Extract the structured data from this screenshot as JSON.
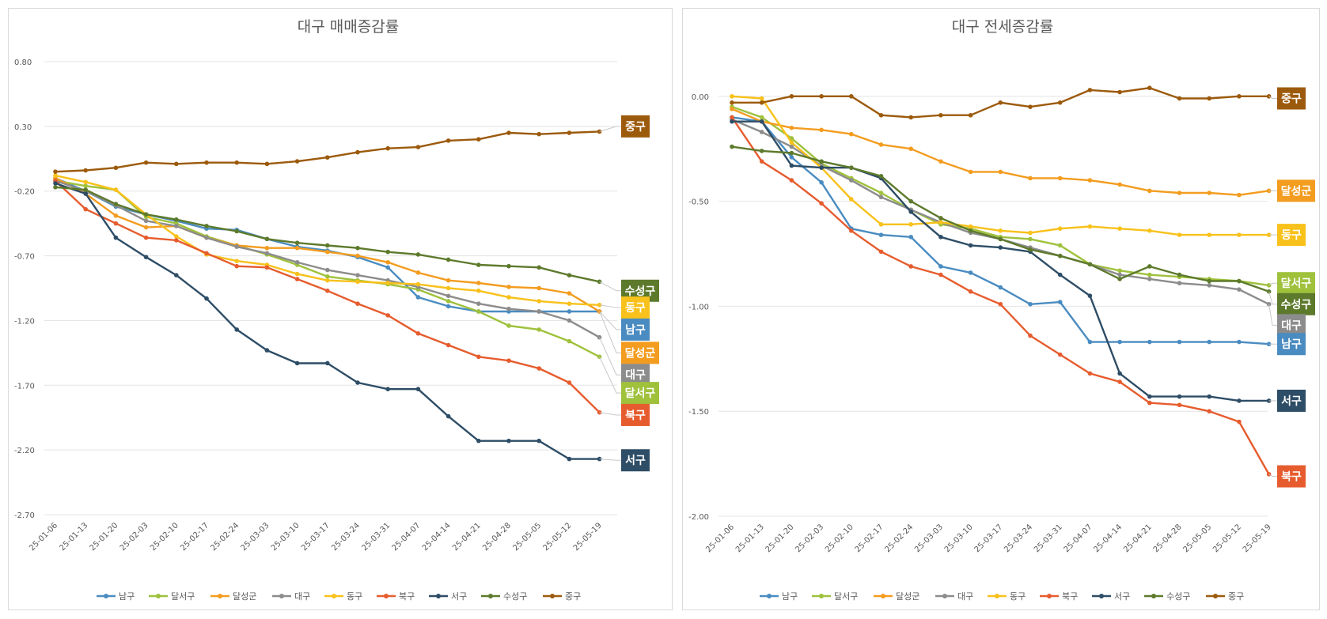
{
  "chart_data": [
    {
      "type": "line",
      "title": "대구 매매증감률",
      "ylim": [
        -2.7,
        0.8
      ],
      "yticks": [
        0.8,
        0.3,
        -0.2,
        -0.7,
        -1.2,
        -1.7,
        -2.2,
        -2.7
      ],
      "ytick_labels": [
        "0.80",
        "0.30",
        "-0.20",
        "-0.70",
        "-1.20",
        "-1.70",
        "-2.20",
        "-2.70"
      ],
      "categories": [
        "25-01-06",
        "25-01-13",
        "25-01-20",
        "25-02-03",
        "25-02-10",
        "25-02-17",
        "25-02-24",
        "25-03-03",
        "25-03-10",
        "25-03-17",
        "25-03-24",
        "25-03-31",
        "25-04-07",
        "25-04-14",
        "25-04-21",
        "25-04-28",
        "25-05-05",
        "25-05-12",
        "25-05-19"
      ],
      "grid": true,
      "legend": "bottom",
      "series": [
        {
          "name": "남구",
          "color": "#4a8cc1",
          "values": [
            -0.1,
            -0.2,
            -0.32,
            -0.38,
            -0.43,
            -0.49,
            -0.5,
            -0.57,
            -0.63,
            -0.66,
            -0.71,
            -0.79,
            -1.02,
            -1.09,
            -1.13,
            -1.13,
            -1.13,
            -1.13,
            -1.13
          ]
        },
        {
          "name": "달서구",
          "color": "#9fc13c",
          "values": [
            -0.12,
            -0.16,
            -0.19,
            -0.4,
            -0.45,
            -0.55,
            -0.62,
            -0.69,
            -0.77,
            -0.86,
            -0.89,
            -0.92,
            -0.96,
            -1.05,
            -1.13,
            -1.24,
            -1.27,
            -1.36,
            -1.48
          ]
        },
        {
          "name": "달성군",
          "color": "#f39c1f",
          "values": [
            -0.1,
            -0.22,
            -0.39,
            -0.48,
            -0.47,
            -0.56,
            -0.62,
            -0.64,
            -0.64,
            -0.67,
            -0.7,
            -0.75,
            -0.83,
            -0.89,
            -0.91,
            -0.94,
            -0.95,
            -0.99,
            -1.13
          ]
        },
        {
          "name": "대구",
          "color": "#8c8c8c",
          "values": [
            -0.12,
            -0.2,
            -0.31,
            -0.43,
            -0.47,
            -0.56,
            -0.63,
            -0.68,
            -0.75,
            -0.81,
            -0.85,
            -0.89,
            -0.94,
            -1.01,
            -1.07,
            -1.11,
            -1.13,
            -1.2,
            -1.33
          ]
        },
        {
          "name": "동구",
          "color": "#f8c11b",
          "values": [
            -0.08,
            -0.13,
            -0.19,
            -0.38,
            -0.55,
            -0.69,
            -0.74,
            -0.77,
            -0.84,
            -0.89,
            -0.9,
            -0.91,
            -0.92,
            -0.95,
            -0.97,
            -1.02,
            -1.05,
            -1.07,
            -1.08
          ]
        },
        {
          "name": "북구",
          "color": "#e65c2e",
          "values": [
            -0.12,
            -0.34,
            -0.45,
            -0.56,
            -0.58,
            -0.68,
            -0.78,
            -0.79,
            -0.88,
            -0.97,
            -1.07,
            -1.16,
            -1.3,
            -1.39,
            -1.48,
            -1.51,
            -1.57,
            -1.68,
            -1.91
          ]
        },
        {
          "name": "서구",
          "color": "#2e4d66",
          "values": [
            -0.14,
            -0.22,
            -0.56,
            -0.71,
            -0.85,
            -1.03,
            -1.27,
            -1.43,
            -1.53,
            -1.53,
            -1.68,
            -1.73,
            -1.73,
            -1.94,
            -2.13,
            -2.13,
            -2.13,
            -2.27,
            -2.27
          ]
        },
        {
          "name": "수성구",
          "color": "#5d7a2c",
          "values": [
            -0.17,
            -0.19,
            -0.3,
            -0.38,
            -0.42,
            -0.47,
            -0.51,
            -0.57,
            -0.6,
            -0.62,
            -0.64,
            -0.67,
            -0.69,
            -0.73,
            -0.77,
            -0.78,
            -0.79,
            -0.85,
            -0.9
          ]
        },
        {
          "name": "중구",
          "color": "#9c5a0c",
          "values": [
            -0.05,
            -0.04,
            -0.02,
            0.02,
            0.01,
            0.02,
            0.02,
            0.01,
            0.03,
            0.06,
            0.1,
            0.13,
            0.14,
            0.19,
            0.2,
            0.25,
            0.24,
            0.25,
            0.26
          ]
        }
      ],
      "end_labels": [
        {
          "name": "중구",
          "color": "#9c5a0c",
          "value": 0.3
        },
        {
          "name": "수성구",
          "color": "#5d7a2c",
          "value": -0.97
        },
        {
          "name": "동구",
          "color": "#f8c11b",
          "value": -1.1
        },
        {
          "name": "남구",
          "color": "#4a8cc1",
          "value": -1.27
        },
        {
          "name": "달성군",
          "color": "#f39c1f",
          "value": -1.45
        },
        {
          "name": "대구",
          "color": "#8c8c8c",
          "value": -1.62
        },
        {
          "name": "달서구",
          "color": "#9fc13c",
          "value": -1.76
        },
        {
          "name": "북구",
          "color": "#e65c2e",
          "value": -1.93
        },
        {
          "name": "서구",
          "color": "#2e4d66",
          "value": -2.28
        }
      ]
    },
    {
      "type": "line",
      "title": "대구 전세증감률",
      "ylim": [
        -2.0,
        0.15
      ],
      "yticks": [
        0.0,
        -0.5,
        -1.0,
        -1.5,
        -2.0
      ],
      "ytick_labels": [
        "0.00",
        "-0.50",
        "-1.00",
        "-1.50",
        "-2.00"
      ],
      "categories": [
        "25-01-06",
        "25-01-13",
        "25-01-20",
        "25-02-03",
        "25-02-10",
        "25-02-17",
        "25-02-24",
        "25-03-03",
        "25-03-10",
        "25-03-17",
        "25-03-24",
        "25-03-31",
        "25-04-07",
        "25-04-14",
        "25-04-21",
        "25-04-28",
        "25-05-05",
        "25-05-12",
        "25-05-19"
      ],
      "grid": true,
      "legend": "bottom",
      "series": [
        {
          "name": "남구",
          "color": "#4a8cc1",
          "values": [
            -0.1,
            -0.12,
            -0.29,
            -0.41,
            -0.63,
            -0.66,
            -0.67,
            -0.81,
            -0.84,
            -0.91,
            -0.99,
            -0.98,
            -1.17,
            -1.17,
            -1.17,
            -1.17,
            -1.17,
            -1.17,
            -1.18
          ]
        },
        {
          "name": "달서구",
          "color": "#9fc13c",
          "values": [
            -0.05,
            -0.1,
            -0.2,
            -0.32,
            -0.39,
            -0.46,
            -0.54,
            -0.61,
            -0.63,
            -0.67,
            -0.68,
            -0.71,
            -0.8,
            -0.83,
            -0.85,
            -0.86,
            -0.87,
            -0.88,
            -0.9
          ]
        },
        {
          "name": "달성군",
          "color": "#f39c1f",
          "values": [
            -0.06,
            -0.12,
            -0.15,
            -0.16,
            -0.18,
            -0.23,
            -0.25,
            -0.31,
            -0.36,
            -0.36,
            -0.39,
            -0.39,
            -0.4,
            -0.42,
            -0.45,
            -0.46,
            -0.46,
            -0.47,
            -0.45
          ]
        },
        {
          "name": "대구",
          "color": "#8c8c8c",
          "values": [
            -0.11,
            -0.17,
            -0.24,
            -0.33,
            -0.4,
            -0.48,
            -0.54,
            -0.6,
            -0.65,
            -0.68,
            -0.72,
            -0.76,
            -0.8,
            -0.85,
            -0.87,
            -0.89,
            -0.9,
            -0.92,
            -0.99
          ]
        },
        {
          "name": "동구",
          "color": "#f8c11b",
          "values": [
            0.0,
            -0.01,
            -0.22,
            -0.34,
            -0.49,
            -0.61,
            -0.61,
            -0.6,
            -0.62,
            -0.64,
            -0.65,
            -0.63,
            -0.62,
            -0.63,
            -0.64,
            -0.66,
            -0.66,
            -0.66,
            -0.66
          ]
        },
        {
          "name": "북구",
          "color": "#e65c2e",
          "values": [
            -0.1,
            -0.31,
            -0.4,
            -0.51,
            -0.64,
            -0.74,
            -0.81,
            -0.85,
            -0.93,
            -0.99,
            -1.14,
            -1.23,
            -1.32,
            -1.36,
            -1.46,
            -1.47,
            -1.5,
            -1.55,
            -1.8
          ]
        },
        {
          "name": "서구",
          "color": "#2e4d66",
          "values": [
            -0.12,
            -0.12,
            -0.33,
            -0.34,
            -0.34,
            -0.39,
            -0.55,
            -0.67,
            -0.71,
            -0.72,
            -0.74,
            -0.85,
            -0.95,
            -1.32,
            -1.43,
            -1.43,
            -1.43,
            -1.45,
            -1.45
          ]
        },
        {
          "name": "수성구",
          "color": "#5d7a2c",
          "values": [
            -0.24,
            -0.26,
            -0.27,
            -0.31,
            -0.34,
            -0.38,
            -0.5,
            -0.58,
            -0.64,
            -0.68,
            -0.73,
            -0.76,
            -0.8,
            -0.87,
            -0.81,
            -0.85,
            -0.88,
            -0.88,
            -0.93
          ]
        },
        {
          "name": "중구",
          "color": "#9c5a0c",
          "values": [
            -0.03,
            -0.03,
            0.0,
            0.0,
            0.0,
            -0.09,
            -0.1,
            -0.09,
            -0.09,
            -0.03,
            -0.05,
            -0.03,
            0.03,
            0.02,
            0.04,
            -0.01,
            -0.01,
            0.0,
            0.0
          ]
        }
      ],
      "end_labels": [
        {
          "name": "중구",
          "color": "#9c5a0c",
          "value": -0.01
        },
        {
          "name": "달성군",
          "color": "#f39c1f",
          "value": -0.45
        },
        {
          "name": "동구",
          "color": "#f8c11b",
          "value": -0.66
        },
        {
          "name": "달서구",
          "color": "#9fc13c",
          "value": -0.89
        },
        {
          "name": "수성구",
          "color": "#5d7a2c",
          "value": -0.99
        },
        {
          "name": "대구",
          "color": "#8c8c8c",
          "value": -1.09
        },
        {
          "name": "남구",
          "color": "#4a8cc1",
          "value": -1.18
        },
        {
          "name": "서구",
          "color": "#2e4d66",
          "value": -1.45
        },
        {
          "name": "북구",
          "color": "#e65c2e",
          "value": -1.81
        }
      ]
    }
  ]
}
